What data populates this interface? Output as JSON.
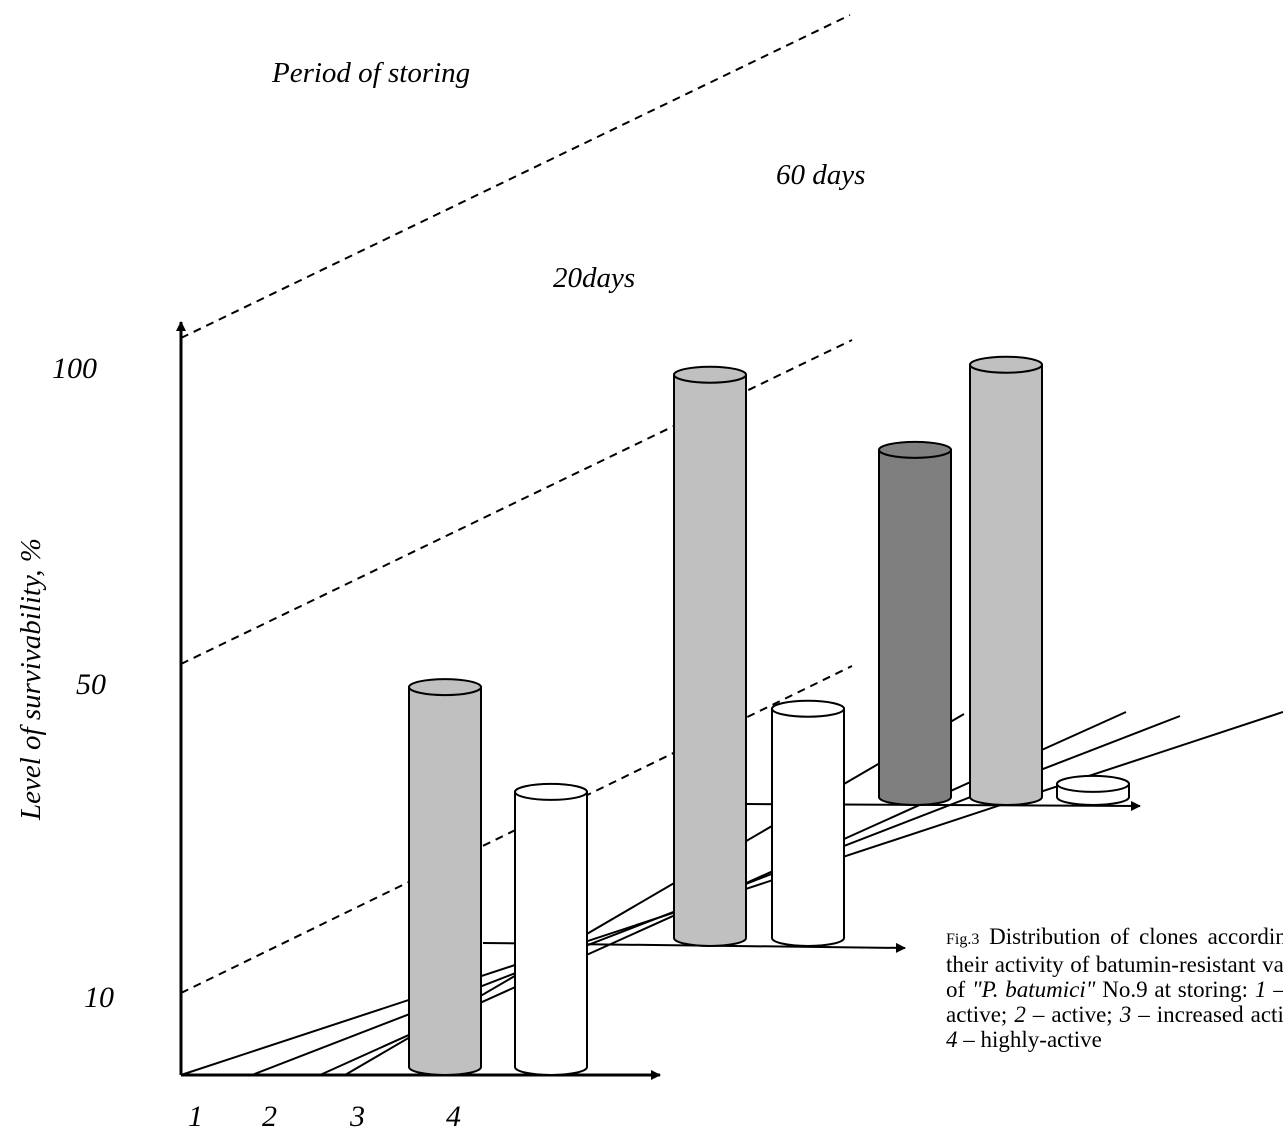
{
  "chart_data": {
    "type": "bar",
    "title": "Period of storing",
    "ylabel": "Level of survivability, %",
    "y_ticks": [
      "100",
      "50",
      "10"
    ],
    "ylim": [
      0,
      100
    ],
    "categories": [
      "1",
      "2",
      "3",
      "4"
    ],
    "series": [
      {
        "name": "20days",
        "values": [
          58,
          42,
          0,
          0
        ]
      },
      {
        "name": "60 days",
        "values": [
          86,
          35,
          0,
          0
        ]
      },
      {
        "name": "",
        "values": [
          2,
          53,
          66,
          1
        ]
      }
    ],
    "colors": [
      "#7f7f7f",
      "#c0c0c0",
      "#ffffff"
    ],
    "grid": false
  },
  "caption": {
    "fig_no": "Fig.3",
    "text_1": " Distribution of clones according to their activity of batumin-resistant variant of ",
    "text_2": "\"P. batumici\"",
    "text_3": " No.9 at storing: ",
    "item_1_num": "1",
    "item_1_text": " – low active; ",
    "item_2_num": "2",
    "item_2_text": " – active; ",
    "item_3_num": "3",
    "item_3_text": " – increased activity; ",
    "item_4_num": "4",
    "item_4_text": " – highly-active"
  }
}
